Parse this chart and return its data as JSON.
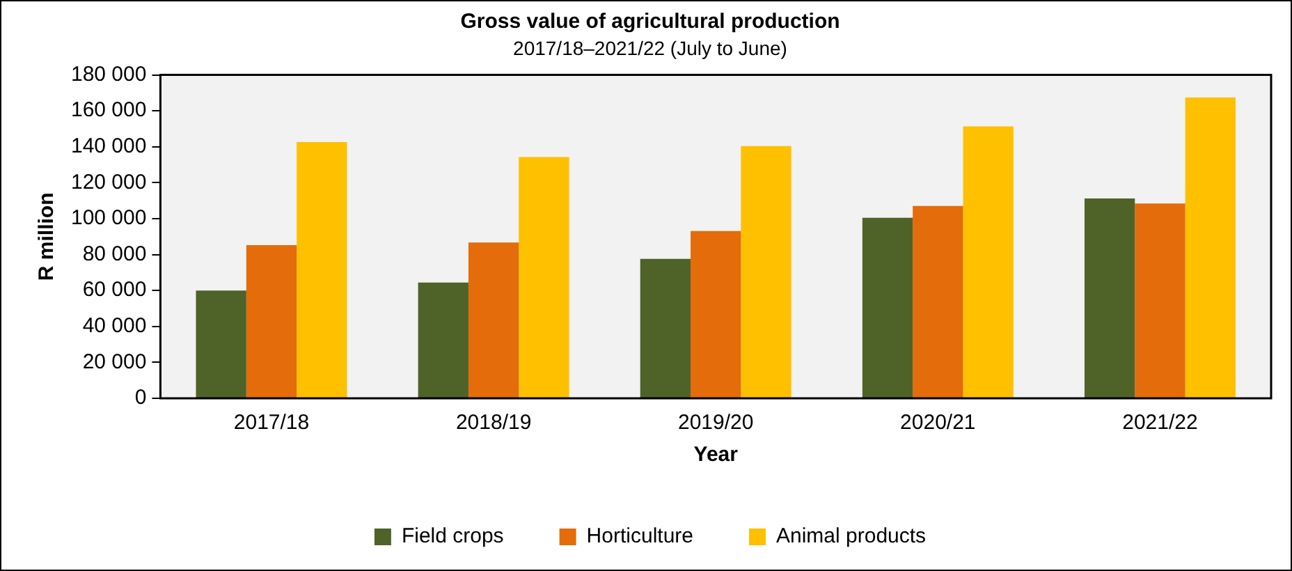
{
  "chart_data": {
    "type": "bar",
    "title": "Gross value of agricultural production",
    "subtitle": "2017/18–2021/22 (July to June)",
    "xlabel": "Year",
    "ylabel": "R million",
    "categories": [
      "2017/18",
      "2018/19",
      "2019/20",
      "2020/21",
      "2021/22"
    ],
    "series": [
      {
        "name": "Field crops",
        "color": "#4f6228",
        "values": [
          60000,
          64400,
          77600,
          100500,
          111200
        ]
      },
      {
        "name": "Horticulture",
        "color": "#e46c0a",
        "values": [
          85300,
          86700,
          93100,
          107100,
          108400
        ]
      },
      {
        "name": "Animal products",
        "color": "#ffc000",
        "values": [
          142600,
          134300,
          140400,
          151400,
          167400
        ]
      }
    ],
    "ylim": [
      0,
      180000
    ],
    "yticks": [
      {
        "value": 0,
        "label": "0"
      },
      {
        "value": 20000,
        "label": "20 000"
      },
      {
        "value": 40000,
        "label": "40 000"
      },
      {
        "value": 60000,
        "label": "60 000"
      },
      {
        "value": 80000,
        "label": "80 000"
      },
      {
        "value": 100000,
        "label": "100 000"
      },
      {
        "value": 120000,
        "label": "120 000"
      },
      {
        "value": 140000,
        "label": "140 000"
      },
      {
        "value": 160000,
        "label": "160 000"
      },
      {
        "value": 180000,
        "label": "180 000"
      }
    ],
    "grid": false,
    "legend": "bottom"
  }
}
